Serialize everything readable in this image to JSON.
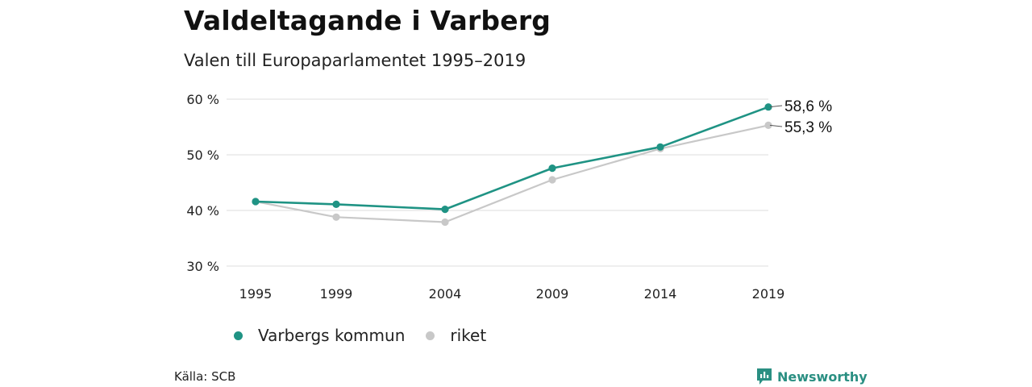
{
  "title": "Valdeltagande i Varberg",
  "subtitle": "Valen till Europaparlamentet 1995–2019",
  "source": "Källa: SCB",
  "brand": "Newsworthy",
  "colors": {
    "varberg": "#1f9384",
    "riket": "#c8c8c8",
    "grid": "#dddddd"
  },
  "chart_data": {
    "type": "line",
    "x": [
      "1995",
      "1999",
      "2004",
      "2009",
      "2014",
      "2019"
    ],
    "y_ticks": [
      "30 %",
      "40 %",
      "50 %",
      "60 %"
    ],
    "ylim": [
      30,
      60
    ],
    "grid": true,
    "legend_position": "bottom-left",
    "series": [
      {
        "name": "Varbergs kommun",
        "values": [
          41.6,
          41.1,
          40.2,
          47.6,
          51.4,
          58.6
        ],
        "end_label": "58,6 %"
      },
      {
        "name": "riket",
        "values": [
          41.6,
          38.8,
          37.9,
          45.5,
          51.1,
          55.3
        ],
        "end_label": "55,3 %"
      }
    ]
  }
}
